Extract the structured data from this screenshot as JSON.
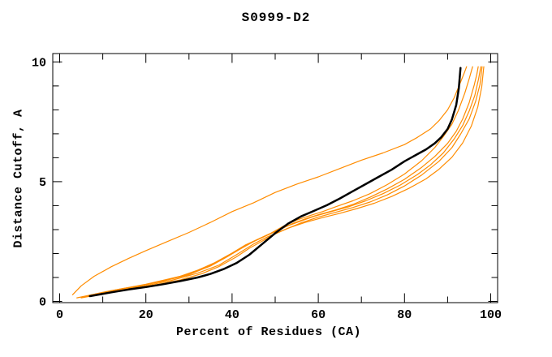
{
  "chart_data": {
    "type": "line",
    "title": "S0999-D2",
    "xlabel": "Percent of Residues (CA)",
    "ylabel": "Distance Cutoff, A",
    "xlim": [
      -1.6,
      101.6
    ],
    "ylim": [
      -0.05,
      10.35
    ],
    "x_major_ticks": [
      0,
      20,
      40,
      60,
      80,
      100
    ],
    "x_minor_ticks": [
      10,
      30,
      50,
      70,
      90
    ],
    "y_major_ticks": [
      0,
      5,
      10
    ],
    "y_minor_ticks": [
      1,
      2,
      3,
      4,
      6,
      7,
      8,
      9
    ],
    "grid": false,
    "legend": "none",
    "background": "#ffffff",
    "axis_color": "#000000",
    "accent_color": "#ff8c00",
    "series": [
      {
        "name": "orange-1",
        "color": "#ff8c00",
        "width": 1.2,
        "points": [
          [
            3,
            0.28
          ],
          [
            5,
            0.65
          ],
          [
            8,
            1.05
          ],
          [
            12,
            1.45
          ],
          [
            16,
            1.8
          ],
          [
            20,
            2.12
          ],
          [
            25,
            2.5
          ],
          [
            30,
            2.88
          ],
          [
            35,
            3.3
          ],
          [
            40,
            3.75
          ],
          [
            45,
            4.12
          ],
          [
            50,
            4.55
          ],
          [
            55,
            4.9
          ],
          [
            60,
            5.2
          ],
          [
            65,
            5.55
          ],
          [
            70,
            5.9
          ],
          [
            75,
            6.2
          ],
          [
            80,
            6.55
          ],
          [
            83,
            6.85
          ],
          [
            86,
            7.2
          ],
          [
            88,
            7.55
          ],
          [
            90,
            8.0
          ],
          [
            91.5,
            8.5
          ],
          [
            93,
            9.15
          ],
          [
            94,
            9.6
          ],
          [
            94.4,
            9.8
          ]
        ]
      },
      {
        "name": "orange-2",
        "color": "#ff8c00",
        "width": 1.2,
        "points": [
          [
            4,
            0.15
          ],
          [
            8,
            0.3
          ],
          [
            12,
            0.45
          ],
          [
            16,
            0.58
          ],
          [
            20,
            0.72
          ],
          [
            24,
            0.88
          ],
          [
            28,
            1.05
          ],
          [
            32,
            1.3
          ],
          [
            36,
            1.62
          ],
          [
            40,
            2.02
          ],
          [
            43,
            2.35
          ],
          [
            46,
            2.6
          ],
          [
            49,
            2.85
          ],
          [
            52,
            3.15
          ],
          [
            55,
            3.4
          ],
          [
            58,
            3.58
          ],
          [
            61,
            3.75
          ],
          [
            64,
            3.95
          ],
          [
            68,
            4.2
          ],
          [
            72,
            4.5
          ],
          [
            76,
            4.88
          ],
          [
            80,
            5.32
          ],
          [
            84,
            5.88
          ],
          [
            87,
            6.42
          ],
          [
            89,
            6.88
          ],
          [
            91,
            7.4
          ],
          [
            92.5,
            7.98
          ],
          [
            94,
            8.7
          ],
          [
            95,
            9.3
          ],
          [
            95.8,
            9.8
          ]
        ]
      },
      {
        "name": "orange-3",
        "color": "#ff8c00",
        "width": 1.2,
        "points": [
          [
            5,
            0.18
          ],
          [
            10,
            0.38
          ],
          [
            15,
            0.55
          ],
          [
            20,
            0.7
          ],
          [
            25,
            0.9
          ],
          [
            30,
            1.15
          ],
          [
            34,
            1.42
          ],
          [
            38,
            1.78
          ],
          [
            42,
            2.2
          ],
          [
            45,
            2.5
          ],
          [
            48,
            2.75
          ],
          [
            51,
            3.0
          ],
          [
            54,
            3.25
          ],
          [
            57,
            3.45
          ],
          [
            60,
            3.62
          ],
          [
            64,
            3.82
          ],
          [
            68,
            4.05
          ],
          [
            72,
            4.35
          ],
          [
            76,
            4.7
          ],
          [
            80,
            5.1
          ],
          [
            84,
            5.6
          ],
          [
            87,
            6.05
          ],
          [
            90,
            6.6
          ],
          [
            92,
            7.1
          ],
          [
            93.5,
            7.62
          ],
          [
            95,
            8.3
          ],
          [
            96.2,
            9.05
          ],
          [
            96.8,
            9.5
          ],
          [
            97.1,
            9.8
          ]
        ]
      },
      {
        "name": "orange-4",
        "color": "#ff8c00",
        "width": 1.2,
        "points": [
          [
            6,
            0.2
          ],
          [
            12,
            0.42
          ],
          [
            18,
            0.62
          ],
          [
            24,
            0.85
          ],
          [
            30,
            1.12
          ],
          [
            35,
            1.48
          ],
          [
            39,
            1.88
          ],
          [
            43,
            2.32
          ],
          [
            47,
            2.68
          ],
          [
            50,
            2.92
          ],
          [
            53,
            3.16
          ],
          [
            56,
            3.36
          ],
          [
            59,
            3.55
          ],
          [
            63,
            3.75
          ],
          [
            67,
            3.95
          ],
          [
            71,
            4.2
          ],
          [
            75,
            4.5
          ],
          [
            79,
            4.86
          ],
          [
            83,
            5.3
          ],
          [
            86,
            5.7
          ],
          [
            89,
            6.2
          ],
          [
            91.5,
            6.78
          ],
          [
            93.5,
            7.35
          ],
          [
            95,
            7.95
          ],
          [
            96.3,
            8.6
          ],
          [
            97.2,
            9.3
          ],
          [
            97.7,
            9.8
          ]
        ]
      },
      {
        "name": "orange-5",
        "color": "#ff8c00",
        "width": 1.2,
        "points": [
          [
            7,
            0.22
          ],
          [
            14,
            0.45
          ],
          [
            20,
            0.65
          ],
          [
            26,
            0.88
          ],
          [
            32,
            1.18
          ],
          [
            37,
            1.52
          ],
          [
            41,
            1.95
          ],
          [
            45,
            2.4
          ],
          [
            48,
            2.68
          ],
          [
            52,
            2.98
          ],
          [
            56,
            3.28
          ],
          [
            60,
            3.52
          ],
          [
            64,
            3.72
          ],
          [
            68,
            3.92
          ],
          [
            72,
            4.15
          ],
          [
            76,
            4.45
          ],
          [
            80,
            4.82
          ],
          [
            84,
            5.28
          ],
          [
            88,
            5.85
          ],
          [
            91,
            6.42
          ],
          [
            93,
            6.98
          ],
          [
            95,
            7.62
          ],
          [
            96.5,
            8.35
          ],
          [
            97.5,
            9.05
          ],
          [
            98,
            9.8
          ]
        ]
      },
      {
        "name": "orange-6",
        "color": "#ff8c00",
        "width": 1.2,
        "points": [
          [
            5,
            0.15
          ],
          [
            10,
            0.32
          ],
          [
            16,
            0.5
          ],
          [
            22,
            0.68
          ],
          [
            28,
            0.9
          ],
          [
            33,
            1.16
          ],
          [
            37,
            1.46
          ],
          [
            41,
            1.86
          ],
          [
            44,
            2.22
          ],
          [
            47,
            2.52
          ],
          [
            50,
            2.82
          ],
          [
            53,
            3.06
          ],
          [
            57,
            3.3
          ],
          [
            61,
            3.5
          ],
          [
            65,
            3.68
          ],
          [
            69,
            3.88
          ],
          [
            73,
            4.1
          ],
          [
            77,
            4.38
          ],
          [
            81,
            4.72
          ],
          [
            85,
            5.12
          ],
          [
            88,
            5.52
          ],
          [
            91,
            6.02
          ],
          [
            93.5,
            6.62
          ],
          [
            95.5,
            7.32
          ],
          [
            97,
            8.12
          ],
          [
            97.9,
            8.95
          ],
          [
            98.4,
            9.8
          ]
        ]
      },
      {
        "name": "black",
        "color": "#000000",
        "width": 2.5,
        "points": [
          [
            7,
            0.22
          ],
          [
            12,
            0.38
          ],
          [
            16,
            0.5
          ],
          [
            20,
            0.6
          ],
          [
            24,
            0.72
          ],
          [
            28,
            0.85
          ],
          [
            32,
            1.0
          ],
          [
            35,
            1.15
          ],
          [
            38,
            1.35
          ],
          [
            41,
            1.6
          ],
          [
            44,
            1.95
          ],
          [
            47,
            2.4
          ],
          [
            50,
            2.85
          ],
          [
            53,
            3.25
          ],
          [
            56,
            3.55
          ],
          [
            59,
            3.78
          ],
          [
            62,
            4.02
          ],
          [
            65,
            4.3
          ],
          [
            68,
            4.6
          ],
          [
            71,
            4.9
          ],
          [
            74,
            5.2
          ],
          [
            77,
            5.5
          ],
          [
            80,
            5.85
          ],
          [
            83,
            6.15
          ],
          [
            85,
            6.35
          ],
          [
            87,
            6.6
          ],
          [
            88.5,
            6.85
          ],
          [
            90,
            7.2
          ],
          [
            91,
            7.6
          ],
          [
            92,
            8.2
          ],
          [
            92.6,
            8.9
          ],
          [
            93,
            9.75
          ]
        ]
      }
    ]
  }
}
